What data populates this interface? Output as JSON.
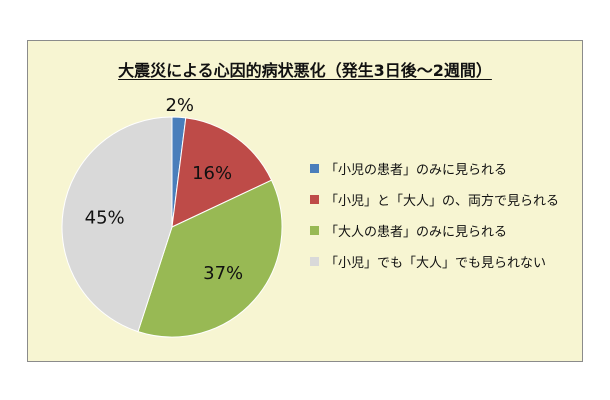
{
  "chart_data": {
    "type": "pie",
    "title": "大震災による心因的病状悪化（発生3日後～2週間）",
    "slices": [
      {
        "label": "「小児の患者」のみに見られる",
        "value": 2,
        "display": "2%",
        "color": "#4a7ebb"
      },
      {
        "label": "「小児」と「大人」の、両方で見られる",
        "value": 16,
        "display": "16%",
        "color": "#be4b48"
      },
      {
        "label": "「大人の患者」のみに見られる",
        "value": 37,
        "display": "37%",
        "color": "#98b954"
      },
      {
        "label": "「小児」でも「大人」でも見られない",
        "value": 45,
        "display": "45%",
        "color": "#d9d9d9"
      }
    ],
    "legend_position": "right"
  }
}
